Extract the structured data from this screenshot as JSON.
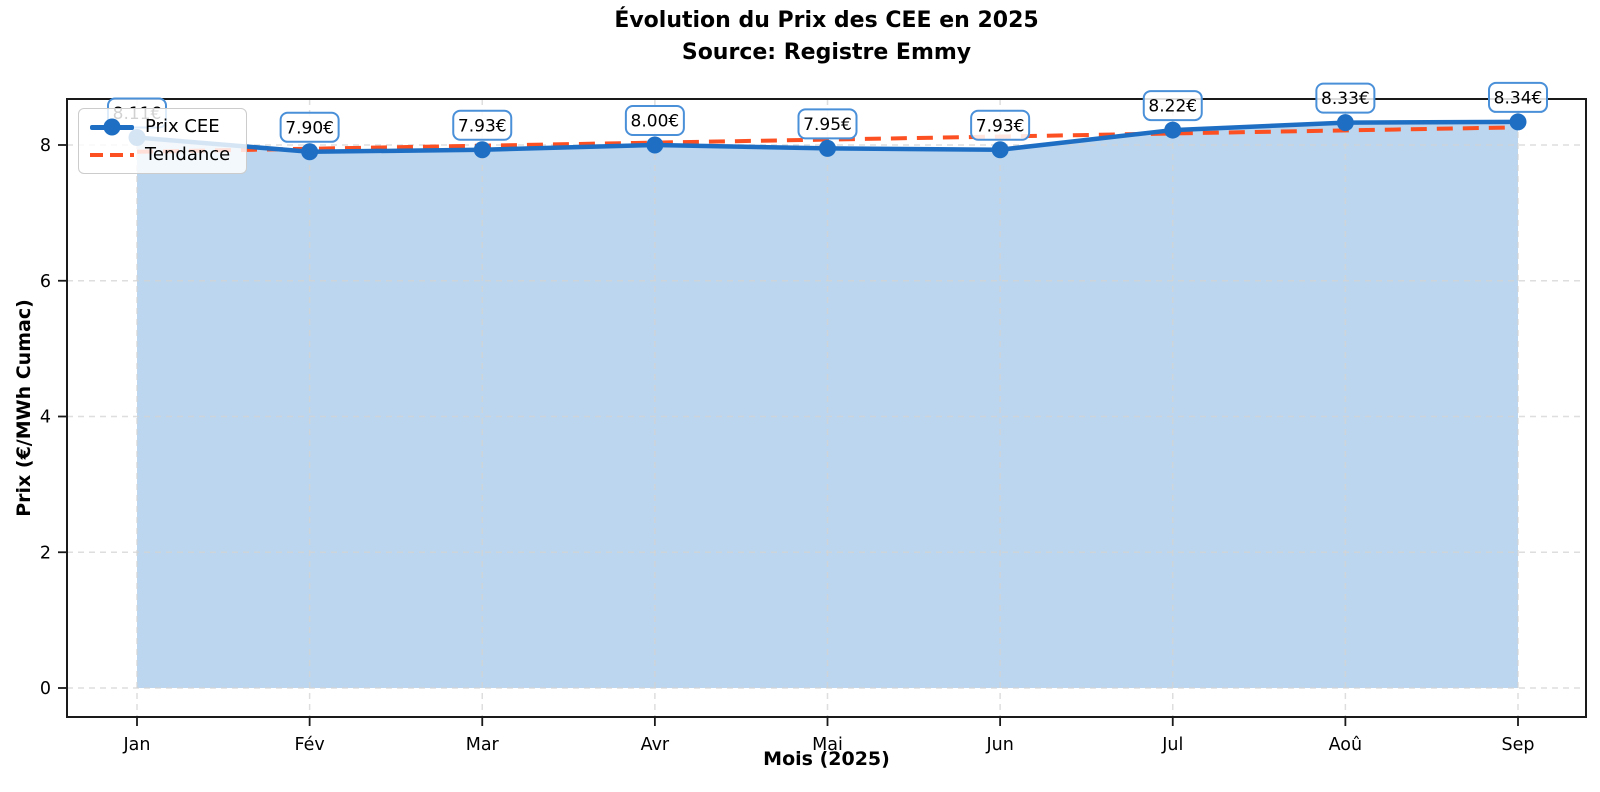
{
  "chart_data": {
    "type": "line",
    "title": "Évolution du Prix des CEE en 2025",
    "subtitle": "Source: Registre Emmy",
    "xlabel": "Mois (2025)",
    "ylabel": "Prix (€/MWh Cumac)",
    "categories": [
      "Jan",
      "Fév",
      "Mar",
      "Avr",
      "Mai",
      "Jun",
      "Jul",
      "Aoû",
      "Sep"
    ],
    "series": [
      {
        "name": "Prix CEE",
        "type": "line+markers+area",
        "color": "#1e6fc4",
        "fill_color": "#bcd6ef",
        "values": [
          8.11,
          7.9,
          7.93,
          8.0,
          7.95,
          7.93,
          8.22,
          8.33,
          8.34
        ],
        "point_labels": [
          "8.11€",
          "7.90€",
          "7.93€",
          "8.00€",
          "7.95€",
          "7.93€",
          "8.22€",
          "8.33€",
          "8.34€"
        ]
      },
      {
        "name": "Tendance",
        "type": "linear-trend-dashed",
        "color": "#fc4f22",
        "endpoint_values": [
          7.9,
          8.26
        ]
      }
    ],
    "yticks": [
      0,
      2,
      4,
      6,
      8
    ],
    "ylim": [
      -0.43,
      8.68
    ],
    "grid": "dashed",
    "grid_color": "#d3d3d3",
    "legend_position": "upper-left",
    "label_box_border_color": "#4a90d9",
    "spine_color": "#1a1a1a"
  }
}
